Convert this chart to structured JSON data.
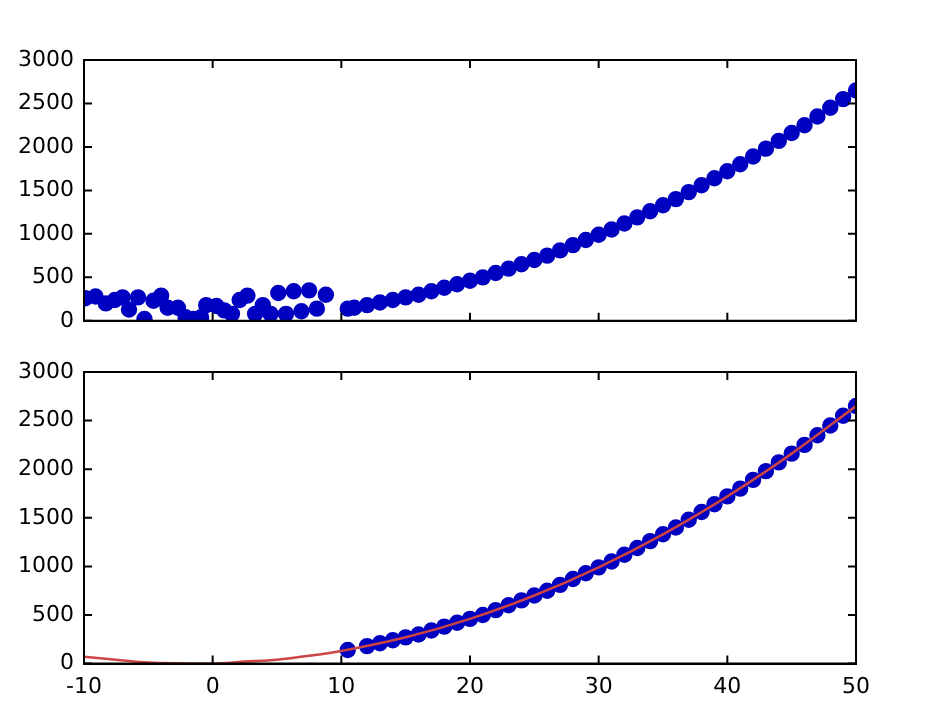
{
  "chart_data": [
    {
      "type": "scatter",
      "color": "#0000c0",
      "marker": "circle",
      "tick_labels": "y",
      "xlim": [
        -10,
        50
      ],
      "ylim": [
        0,
        3000
      ],
      "xticks": [
        -10,
        0,
        10,
        20,
        30,
        40,
        50
      ],
      "yticks": [
        0,
        500,
        1000,
        1500,
        2000,
        2500,
        3000
      ],
      "x": [
        -9.9,
        -9.1,
        -8.3,
        -7.6,
        -7.0,
        -6.5,
        -5.8,
        -5.3,
        -4.6,
        -4.0,
        -3.5,
        -2.7,
        -2.1,
        -1.5,
        -0.9,
        -0.5,
        0.3,
        0.9,
        1.5,
        2.1,
        2.7,
        3.3,
        3.9,
        4.5,
        5.1,
        5.7,
        6.3,
        6.9,
        7.5,
        8.1,
        8.8,
        10.5,
        11,
        12,
        13,
        14,
        15,
        16,
        17,
        18,
        19,
        20,
        21,
        22,
        23,
        24,
        25,
        26,
        27,
        28,
        29,
        30,
        31,
        32,
        33,
        34,
        35,
        36,
        37,
        38,
        39,
        40,
        41,
        42,
        43,
        44,
        45,
        46,
        47,
        48,
        49,
        50
      ],
      "values": [
        260,
        280,
        200,
        240,
        270,
        130,
        270,
        20,
        230,
        290,
        150,
        150,
        40,
        20,
        40,
        180,
        170,
        120,
        80,
        240,
        290,
        80,
        180,
        80,
        320,
        80,
        340,
        110,
        350,
        140,
        300,
        140,
        150,
        180,
        210,
        240,
        270,
        300,
        340,
        380,
        420,
        460,
        500,
        550,
        600,
        650,
        700,
        750,
        810,
        870,
        930,
        990,
        1050,
        1120,
        1190,
        1260,
        1330,
        1400,
        1480,
        1560,
        1640,
        1720,
        1800,
        1890,
        1980,
        2070,
        2160,
        2250,
        2350,
        2450,
        2550,
        2650
      ]
    },
    {
      "type": "scatter",
      "xlim": [
        -10,
        50
      ],
      "ylim": [
        0,
        3000
      ],
      "xticks": [
        -10,
        0,
        10,
        20,
        30,
        40,
        50
      ],
      "yticks": [
        0,
        500,
        1000,
        1500,
        2000,
        2500,
        3000
      ],
      "series": [
        {
          "color": "#0000c0",
          "marker": "circle",
          "x": [
            10.5,
            12,
            13,
            14,
            15,
            16,
            17,
            18,
            19,
            20,
            21,
            22,
            23,
            24,
            25,
            26,
            27,
            28,
            29,
            30,
            31,
            32,
            33,
            34,
            35,
            36,
            37,
            38,
            39,
            40,
            41,
            42,
            43,
            44,
            45,
            46,
            47,
            48,
            49,
            50
          ],
          "values": [
            140,
            180,
            210,
            240,
            270,
            300,
            340,
            380,
            420,
            460,
            500,
            550,
            600,
            650,
            700,
            750,
            810,
            870,
            930,
            990,
            1050,
            1120,
            1190,
            1260,
            1330,
            1400,
            1480,
            1560,
            1640,
            1720,
            1800,
            1890,
            1980,
            2070,
            2160,
            2250,
            2350,
            2450,
            2550,
            2650
          ]
        },
        {
          "type": "line",
          "color": "#cc4444",
          "x": [
            -10,
            -7.5,
            -5,
            0,
            2.5,
            5,
            7.5,
            10,
            15,
            20,
            25,
            30,
            35,
            40,
            45,
            50
          ],
          "values": [
            70,
            40,
            10,
            0,
            20,
            40,
            80,
            130,
            270,
            460,
            700,
            990,
            1330,
            1720,
            2160,
            2650
          ]
        }
      ]
    }
  ]
}
